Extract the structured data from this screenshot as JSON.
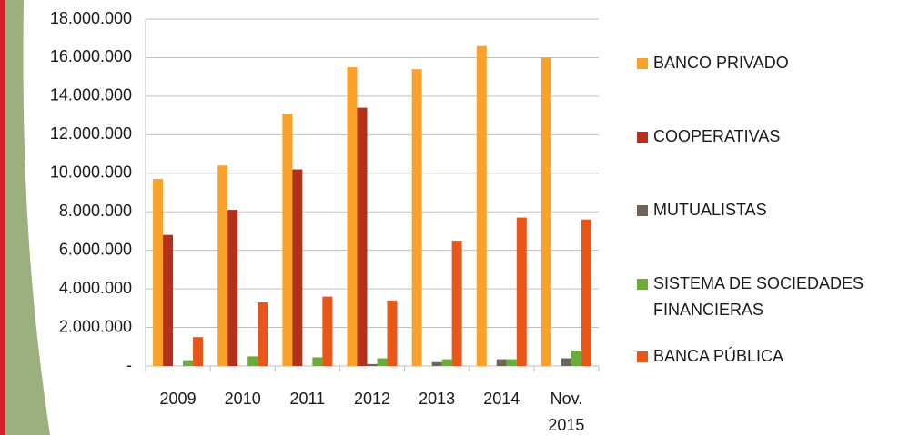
{
  "chart_data": {
    "type": "bar",
    "categories": [
      "2009",
      "2010",
      "2011",
      "2012",
      "2013",
      "2014",
      "Nov. 2015"
    ],
    "series": [
      {
        "name": "BANCO PRIVADO",
        "color": "#f9a12b",
        "values": [
          9700000,
          10400000,
          13100000,
          15500000,
          15400000,
          16600000,
          16000000
        ]
      },
      {
        "name": "COOPERATIVAS",
        "color": "#b2301c",
        "values": [
          6800000,
          8100000,
          10200000,
          13400000,
          0,
          0,
          0
        ]
      },
      {
        "name": "MUTUALISTAS",
        "color": "#6f6458",
        "values": [
          0,
          0,
          0,
          100000,
          200000,
          350000,
          400000
        ]
      },
      {
        "name": "SISTEMA DE SOCIEDADES FINANCIERAS",
        "color": "#6aab3c",
        "values": [
          300000,
          500000,
          450000,
          400000,
          350000,
          350000,
          800000
        ]
      },
      {
        "name": "BANCA PÚBLICA",
        "color": "#e9561a",
        "values": [
          1500000,
          3300000,
          3600000,
          3400000,
          6500000,
          7700000,
          7600000
        ]
      }
    ],
    "ylim": [
      0,
      18000000
    ],
    "yticks": [
      {
        "value": 0,
        "label": "-"
      },
      {
        "value": 2000000,
        "label": "2.000.000"
      },
      {
        "value": 4000000,
        "label": "4.000.000"
      },
      {
        "value": 6000000,
        "label": "6.000.000"
      },
      {
        "value": 8000000,
        "label": "8.000.000"
      },
      {
        "value": 10000000,
        "label": "10.000.000"
      },
      {
        "value": 12000000,
        "label": "12.000.000"
      },
      {
        "value": 14000000,
        "label": "14.000.000"
      },
      {
        "value": 16000000,
        "label": "16.000.000"
      },
      {
        "value": 18000000,
        "label": "18.000.000"
      }
    ],
    "grid": true,
    "legend": "right"
  }
}
